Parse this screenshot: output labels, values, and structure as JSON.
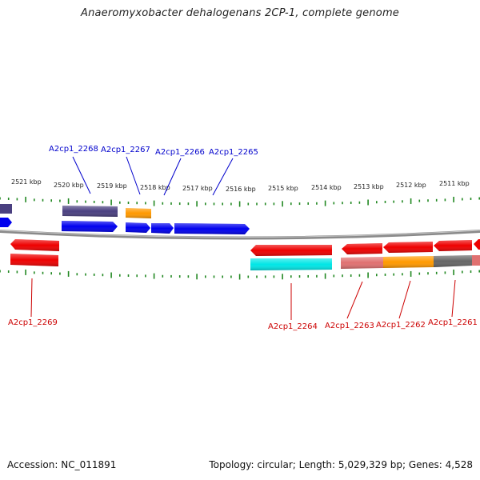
{
  "title": "Anaeromyxobacter dehalogenans 2CP-1, complete genome",
  "footer": {
    "accession": "Accession: NC_011891",
    "stats": "Topology: circular; Length: 5,029,329 bp; Genes: 4,528"
  },
  "colors": {
    "backbone": "#888888",
    "tick": "#228822",
    "forward_label": "#0000cc",
    "reverse_label": "#cc0000",
    "blue": "#0000ee",
    "purple": "#4a4080",
    "orange": "#ff9900",
    "red": "#ee0000",
    "cyan": "#00e6e6",
    "pink": "#e07070",
    "gray": "#666666"
  },
  "kbp_labels": [
    "2521 kbp",
    "2520 kbp",
    "2519 kbp",
    "2518 kbp",
    "2517 kbp",
    "2516 kbp",
    "2515 kbp",
    "2514 kbp",
    "2513 kbp",
    "2512 kbp",
    "2511 kbp"
  ],
  "forward_genes": [
    {
      "name": "A2cp1_2268"
    },
    {
      "name": "A2cp1_2267"
    },
    {
      "name": "A2cp1_2266"
    },
    {
      "name": "A2cp1_2265"
    }
  ],
  "reverse_genes": [
    {
      "name": "A2cp1_2269"
    },
    {
      "name": "A2cp1_2264"
    },
    {
      "name": "A2cp1_2263"
    },
    {
      "name": "A2cp1_2262"
    },
    {
      "name": "A2cp1_2261"
    }
  ]
}
